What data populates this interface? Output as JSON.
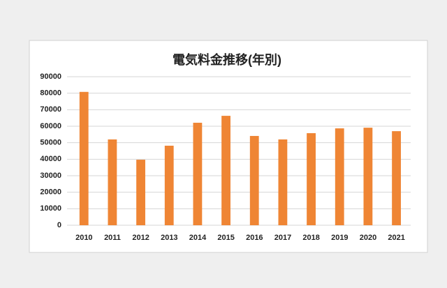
{
  "chart_data": {
    "type": "bar",
    "title": "電気料金推移(年別)",
    "categories": [
      "2010",
      "2011",
      "2012",
      "2013",
      "2014",
      "2015",
      "2016",
      "2017",
      "2018",
      "2019",
      "2020",
      "2021"
    ],
    "values": [
      80800,
      52000,
      39700,
      48200,
      62100,
      66300,
      54100,
      52000,
      55800,
      58700,
      59100,
      57000
    ],
    "color": "#ef8534",
    "ylim": [
      0,
      90000
    ],
    "yticks": [
      0,
      10000,
      20000,
      30000,
      40000,
      50000,
      60000,
      70000,
      80000,
      90000
    ],
    "grid": true
  }
}
